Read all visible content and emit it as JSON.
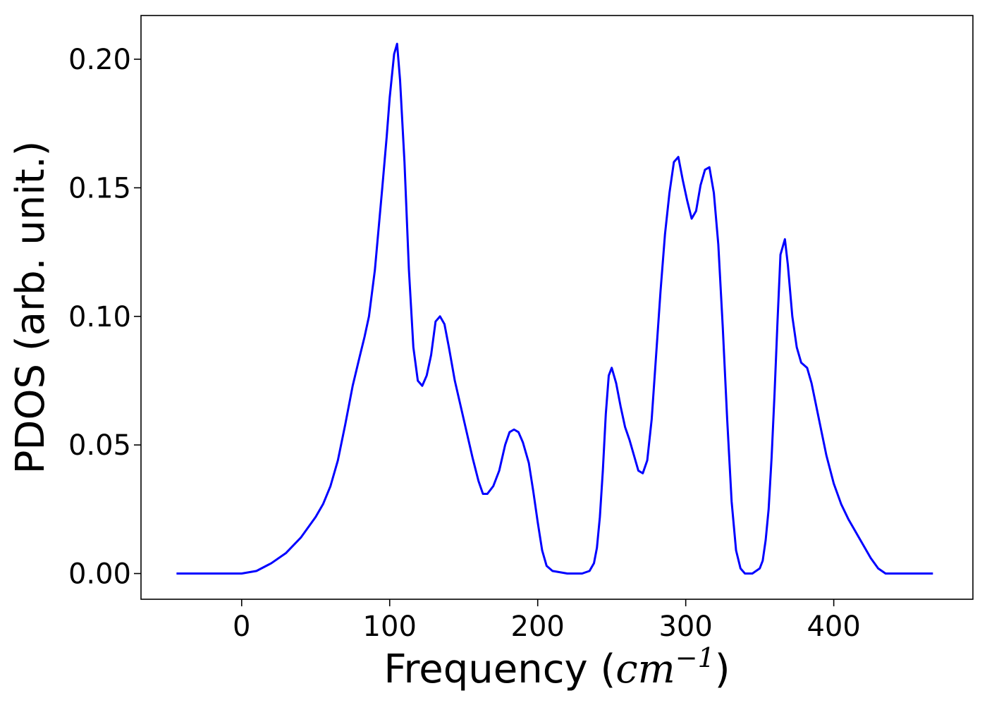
{
  "chart_data": {
    "type": "line",
    "title": "",
    "xlabel": {
      "text": "Frequency (",
      "math_base": "cm",
      "math_exp": "−1",
      "suffix": ")"
    },
    "ylabel": "PDOS (arb. unit.)",
    "xlim": [
      -68,
      494
    ],
    "ylim": [
      -0.01,
      0.217
    ],
    "xticks": [
      0,
      100,
      200,
      300,
      400
    ],
    "xtick_labels": [
      "0",
      "100",
      "200",
      "300",
      "400"
    ],
    "yticks": [
      0.0,
      0.05,
      0.1,
      0.15,
      0.2
    ],
    "ytick_labels": [
      "0.00",
      "0.05",
      "0.10",
      "0.15",
      "0.20"
    ],
    "grid": false,
    "legend": "none",
    "series": [
      {
        "color": "#0000ff",
        "x": [
          -44,
          0,
          10,
          20,
          30,
          40,
          50,
          55,
          60,
          65,
          70,
          75,
          80,
          83,
          86,
          90,
          95,
          98,
          100,
          103,
          105,
          107,
          110,
          113,
          116,
          119,
          122,
          125,
          128,
          131,
          134,
          137,
          140,
          144,
          148,
          152,
          156,
          160,
          163,
          166,
          170,
          174,
          178,
          181,
          184,
          187,
          190,
          194,
          197,
          200,
          203,
          206,
          210,
          220,
          230,
          235,
          238,
          240,
          242,
          244,
          246,
          248,
          250,
          253,
          256,
          259,
          262,
          265,
          268,
          271,
          274,
          277,
          280,
          283,
          286,
          289,
          292,
          295,
          298,
          301,
          304,
          307,
          310,
          313,
          316,
          319,
          322,
          325,
          328,
          331,
          334,
          337,
          340,
          345,
          350,
          352,
          354,
          356,
          358,
          360,
          362,
          364,
          367,
          369,
          372,
          375,
          378,
          382,
          385,
          390,
          395,
          400,
          405,
          410,
          415,
          420,
          425,
          430,
          435,
          440,
          467
        ],
        "y": [
          0.0,
          0.0,
          0.001,
          0.004,
          0.008,
          0.014,
          0.022,
          0.027,
          0.034,
          0.044,
          0.058,
          0.073,
          0.085,
          0.092,
          0.1,
          0.118,
          0.15,
          0.17,
          0.185,
          0.202,
          0.206,
          0.192,
          0.16,
          0.118,
          0.088,
          0.075,
          0.073,
          0.077,
          0.085,
          0.098,
          0.1,
          0.097,
          0.088,
          0.075,
          0.065,
          0.055,
          0.045,
          0.036,
          0.031,
          0.031,
          0.034,
          0.04,
          0.05,
          0.055,
          0.056,
          0.055,
          0.051,
          0.043,
          0.032,
          0.02,
          0.009,
          0.003,
          0.001,
          0.0,
          0.0,
          0.001,
          0.004,
          0.01,
          0.022,
          0.04,
          0.062,
          0.077,
          0.08,
          0.074,
          0.065,
          0.057,
          0.052,
          0.046,
          0.04,
          0.039,
          0.044,
          0.06,
          0.085,
          0.11,
          0.132,
          0.148,
          0.16,
          0.162,
          0.153,
          0.145,
          0.138,
          0.141,
          0.151,
          0.157,
          0.158,
          0.148,
          0.128,
          0.096,
          0.06,
          0.028,
          0.009,
          0.002,
          0.0,
          0.0,
          0.002,
          0.005,
          0.013,
          0.025,
          0.045,
          0.07,
          0.098,
          0.124,
          0.13,
          0.12,
          0.1,
          0.088,
          0.082,
          0.08,
          0.074,
          0.06,
          0.046,
          0.035,
          0.027,
          0.021,
          0.016,
          0.011,
          0.006,
          0.002,
          0.0,
          0.0,
          0.0
        ]
      }
    ]
  }
}
